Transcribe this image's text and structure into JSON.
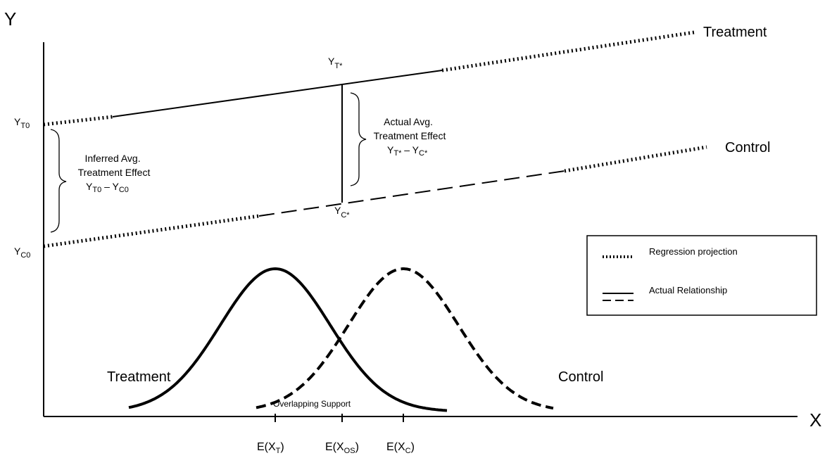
{
  "axes": {
    "y_label": "Y",
    "x_label": "X"
  },
  "lines": {
    "treatment_label": "Treatment",
    "control_label": "Control"
  },
  "y_points": {
    "yt0": {
      "base": "Y",
      "sub": "T0"
    },
    "yc0": {
      "base": "Y",
      "sub": "C0"
    },
    "yt_star": {
      "base": "Y",
      "sub": "T*"
    },
    "yc_star": {
      "base": "Y",
      "sub": "C*"
    }
  },
  "inferred_effect": {
    "line1": "Inferred Avg.",
    "line2": "Treatment Effect",
    "formula": {
      "a": "Y",
      "a_sub": "T0",
      "minus": " – ",
      "b": "Y",
      "b_sub": "C0"
    }
  },
  "actual_effect": {
    "line1": "Actual Avg.",
    "line2": "Treatment Effect",
    "formula": {
      "a": "Y",
      "a_sub": "T*",
      "minus": " – ",
      "b": "Y",
      "b_sub": "C*"
    }
  },
  "legend": {
    "projection_label": "Regression projection",
    "actual_label": "Actual Relationship"
  },
  "distributions": {
    "treatment_label": "Treatment",
    "control_label": "Control",
    "overlap_label": "Overlapping Support"
  },
  "x_ticks": {
    "et": {
      "pre": "E(X",
      "sub": "T",
      "post": ")"
    },
    "eos": {
      "pre": "E(X",
      "sub": "OS",
      "post": ")"
    },
    "ec": {
      "pre": "E(X",
      "sub": "C",
      "post": ")"
    }
  }
}
